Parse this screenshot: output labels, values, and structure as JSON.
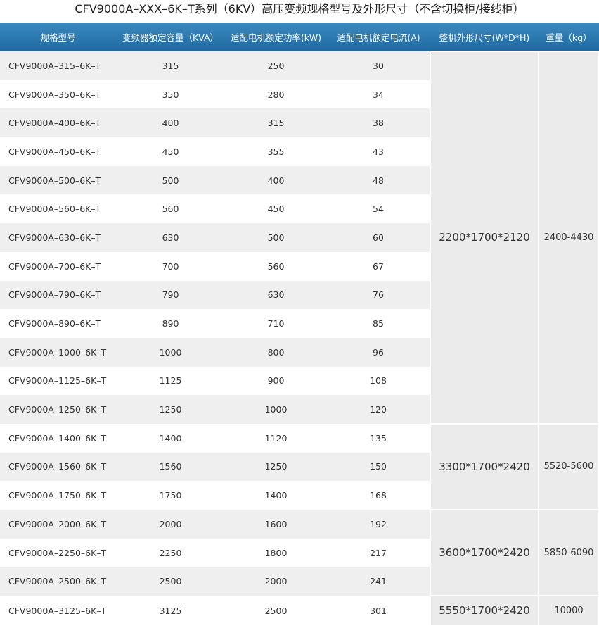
{
  "title": "CFV9000A–XXX–6K–T系列（6KV）高压变频规格型号及外形尺寸（不含切换柜/接线柜）",
  "table": {
    "headers": [
      "规格型号",
      "变频器额定容量（KVA）",
      "适配电机额定功率(kW)",
      "适配电机额定电流(A)",
      "整机外形尺寸(W*D*H)",
      "重量（kg）"
    ],
    "groups": [
      {
        "dimension": "2200*1700*2120",
        "weight": "2400-4430",
        "rows": [
          [
            "CFV9000A–315–6K–T",
            315,
            250,
            30
          ],
          [
            "CFV9000A–350–6K–T",
            350,
            280,
            34
          ],
          [
            "CFV9000A–400–6K–T",
            400,
            315,
            38
          ],
          [
            "CFV9000A–450–6K–T",
            450,
            355,
            43
          ],
          [
            "CFV9000A–500–6K–T",
            500,
            400,
            48
          ],
          [
            "CFV9000A–560–6K–T",
            560,
            450,
            54
          ],
          [
            "CFV9000A–630–6K–T",
            630,
            500,
            60
          ],
          [
            "CFV9000A–700–6K–T",
            700,
            560,
            67
          ],
          [
            "CFV9000A–790–6K–T",
            790,
            630,
            76
          ],
          [
            "CFV9000A–890–6K–T",
            890,
            710,
            85
          ],
          [
            "CFV9000A–1000–6K–T",
            1000,
            800,
            96
          ],
          [
            "CFV9000A–1125–6K–T",
            1125,
            900,
            108
          ],
          [
            "CFV9000A–1250–6K–T",
            1250,
            1000,
            120
          ]
        ]
      },
      {
        "dimension": "3300*1700*2420",
        "weight": "5520-5600",
        "rows": [
          [
            "CFV9000A–1400–6K–T",
            1400,
            1120,
            135
          ],
          [
            "CFV9000A–1560–6K–T",
            1560,
            1250,
            150
          ],
          [
            "CFV9000A–1750–6K–T",
            1750,
            1400,
            168
          ]
        ]
      },
      {
        "dimension": "3600*1700*2420",
        "weight": "5850-6090",
        "rows": [
          [
            "CFV9000A–2000–6K–T",
            2000,
            1600,
            192
          ],
          [
            "CFV9000A–2250–6K–T",
            2250,
            1800,
            217
          ],
          [
            "CFV9000A–2500–6K–T",
            2500,
            2000,
            241
          ]
        ]
      },
      {
        "dimension": "5550*1700*2420",
        "weight": "10000",
        "rows": [
          [
            "CFV9000A–3125–6K–T",
            3125,
            2500,
            301
          ]
        ]
      }
    ]
  }
}
